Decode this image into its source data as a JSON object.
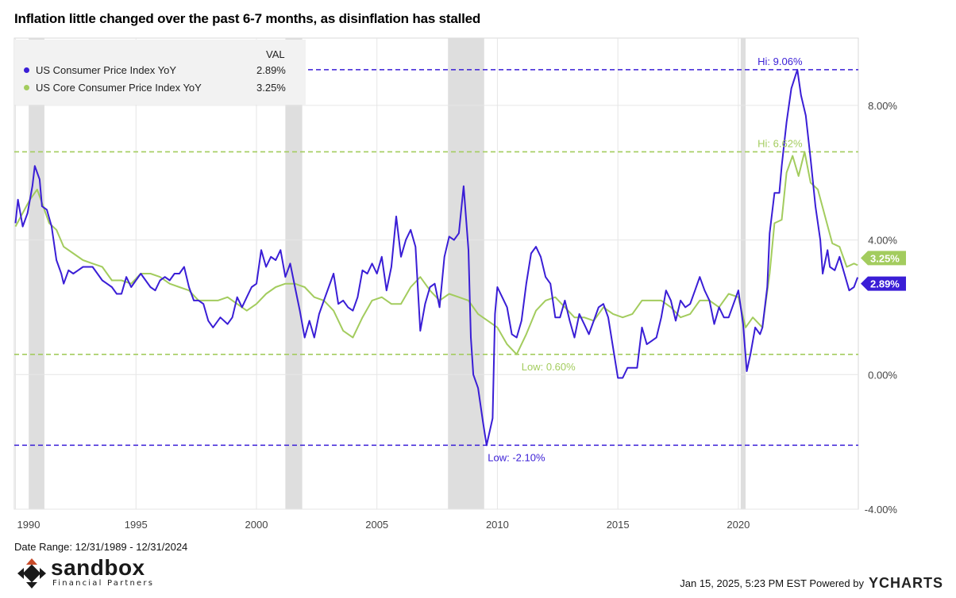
{
  "title": "Inflation little changed over the past 6-7 months, as disinflation has stalled",
  "legend": {
    "header": "VAL",
    "items": [
      {
        "name": "US Consumer Price Index YoY",
        "value": "2.89%",
        "color": "#3a1ed6"
      },
      {
        "name": "US Core Consumer Price Index YoY",
        "value": "3.25%",
        "color": "#a3cc5e"
      }
    ]
  },
  "footer": {
    "date_range": "Date Range: 12/31/1989 - 12/31/2024",
    "timestamp": "Jan 15, 2025, 5:23 PM EST Powered by",
    "brand": "YCHARTS",
    "logo_word": "sandbox",
    "logo_sub": "Financial Partners"
  },
  "chart_data": {
    "type": "line",
    "x_range": [
      "1989-12-31",
      "2024-12-31"
    ],
    "ylim": [
      -4,
      10
    ],
    "yticks": [
      "-4.00%",
      "0.00%",
      "4.00%",
      "8.00%"
    ],
    "ytick_values": [
      -4,
      0,
      4,
      8
    ],
    "xticks": [
      "1990",
      "1995",
      "2000",
      "2005",
      "2010",
      "2015",
      "2020"
    ],
    "xtick_values": [
      1990,
      1995,
      2000,
      2005,
      2010,
      2015,
      2020
    ],
    "recessions": [
      [
        1990.55,
        1991.2
      ],
      [
        2001.2,
        2001.9
      ],
      [
        2007.95,
        2009.45
      ],
      [
        2020.1,
        2020.3
      ]
    ],
    "reference_lines": [
      {
        "value": 9.06,
        "label": "Hi: 9.06%",
        "label_x": 2020.8,
        "series": 0
      },
      {
        "value": 6.62,
        "label": "Hi: 6.62%",
        "label_x": 2020.8,
        "series": 1
      },
      {
        "value": 0.6,
        "label": "Low: 0.60%",
        "label_x": 2011.0,
        "series": 1
      },
      {
        "value": -2.1,
        "label": "Low: -2.10%",
        "label_x": 2009.6,
        "series": 0
      }
    ],
    "end_labels": [
      "2.89%",
      "3.25%"
    ],
    "series": [
      {
        "name": "US Consumer Price Index YoY",
        "color": "#3a1ed6",
        "points": [
          [
            1990.0,
            4.5
          ],
          [
            1990.1,
            5.2
          ],
          [
            1990.3,
            4.4
          ],
          [
            1990.5,
            4.8
          ],
          [
            1990.7,
            5.6
          ],
          [
            1990.8,
            6.2
          ],
          [
            1991.0,
            5.8
          ],
          [
            1991.1,
            5.0
          ],
          [
            1991.3,
            4.9
          ],
          [
            1991.5,
            4.4
          ],
          [
            1991.7,
            3.4
          ],
          [
            1991.9,
            3.0
          ],
          [
            1992.0,
            2.7
          ],
          [
            1992.2,
            3.1
          ],
          [
            1992.4,
            3.0
          ],
          [
            1992.6,
            3.1
          ],
          [
            1992.8,
            3.2
          ],
          [
            1993.0,
            3.2
          ],
          [
            1993.2,
            3.2
          ],
          [
            1993.4,
            3.0
          ],
          [
            1993.6,
            2.8
          ],
          [
            1993.8,
            2.7
          ],
          [
            1994.0,
            2.6
          ],
          [
            1994.2,
            2.4
          ],
          [
            1994.4,
            2.4
          ],
          [
            1994.6,
            2.9
          ],
          [
            1994.8,
            2.6
          ],
          [
            1995.0,
            2.8
          ],
          [
            1995.2,
            3.0
          ],
          [
            1995.4,
            2.8
          ],
          [
            1995.6,
            2.6
          ],
          [
            1995.8,
            2.5
          ],
          [
            1996.0,
            2.8
          ],
          [
            1996.2,
            2.9
          ],
          [
            1996.4,
            2.8
          ],
          [
            1996.6,
            3.0
          ],
          [
            1996.8,
            3.0
          ],
          [
            1997.0,
            3.2
          ],
          [
            1997.2,
            2.6
          ],
          [
            1997.4,
            2.2
          ],
          [
            1997.6,
            2.2
          ],
          [
            1997.8,
            2.1
          ],
          [
            1998.0,
            1.6
          ],
          [
            1998.2,
            1.4
          ],
          [
            1998.5,
            1.7
          ],
          [
            1998.8,
            1.5
          ],
          [
            1999.0,
            1.7
          ],
          [
            1999.2,
            2.3
          ],
          [
            1999.4,
            2.0
          ],
          [
            1999.6,
            2.3
          ],
          [
            1999.8,
            2.6
          ],
          [
            2000.0,
            2.7
          ],
          [
            2000.2,
            3.7
          ],
          [
            2000.4,
            3.2
          ],
          [
            2000.6,
            3.5
          ],
          [
            2000.8,
            3.4
          ],
          [
            2001.0,
            3.7
          ],
          [
            2001.2,
            2.9
          ],
          [
            2001.4,
            3.3
          ],
          [
            2001.6,
            2.6
          ],
          [
            2001.8,
            1.9
          ],
          [
            2002.0,
            1.1
          ],
          [
            2002.2,
            1.6
          ],
          [
            2002.4,
            1.1
          ],
          [
            2002.6,
            1.8
          ],
          [
            2002.8,
            2.2
          ],
          [
            2003.0,
            2.6
          ],
          [
            2003.2,
            3.0
          ],
          [
            2003.4,
            2.1
          ],
          [
            2003.6,
            2.2
          ],
          [
            2003.8,
            2.0
          ],
          [
            2004.0,
            1.9
          ],
          [
            2004.2,
            2.3
          ],
          [
            2004.4,
            3.1
          ],
          [
            2004.6,
            3.0
          ],
          [
            2004.8,
            3.3
          ],
          [
            2005.0,
            3.0
          ],
          [
            2005.2,
            3.5
          ],
          [
            2005.4,
            2.5
          ],
          [
            2005.6,
            3.2
          ],
          [
            2005.8,
            4.7
          ],
          [
            2006.0,
            3.5
          ],
          [
            2006.2,
            4.0
          ],
          [
            2006.4,
            4.3
          ],
          [
            2006.6,
            3.8
          ],
          [
            2006.8,
            1.3
          ],
          [
            2007.0,
            2.1
          ],
          [
            2007.2,
            2.6
          ],
          [
            2007.4,
            2.7
          ],
          [
            2007.6,
            2.0
          ],
          [
            2007.8,
            3.5
          ],
          [
            2008.0,
            4.1
          ],
          [
            2008.2,
            4.0
          ],
          [
            2008.4,
            4.2
          ],
          [
            2008.6,
            5.6
          ],
          [
            2008.8,
            3.7
          ],
          [
            2008.9,
            1.1
          ],
          [
            2009.0,
            0.0
          ],
          [
            2009.2,
            -0.4
          ],
          [
            2009.4,
            -1.4
          ],
          [
            2009.55,
            -2.1
          ],
          [
            2009.8,
            -1.3
          ],
          [
            2009.9,
            1.8
          ],
          [
            2010.0,
            2.6
          ],
          [
            2010.2,
            2.3
          ],
          [
            2010.4,
            2.0
          ],
          [
            2010.6,
            1.2
          ],
          [
            2010.8,
            1.1
          ],
          [
            2011.0,
            1.6
          ],
          [
            2011.2,
            2.7
          ],
          [
            2011.4,
            3.6
          ],
          [
            2011.6,
            3.8
          ],
          [
            2011.8,
            3.5
          ],
          [
            2012.0,
            2.9
          ],
          [
            2012.2,
            2.7
          ],
          [
            2012.4,
            1.7
          ],
          [
            2012.6,
            1.7
          ],
          [
            2012.8,
            2.2
          ],
          [
            2013.0,
            1.6
          ],
          [
            2013.2,
            1.1
          ],
          [
            2013.4,
            1.8
          ],
          [
            2013.6,
            1.5
          ],
          [
            2013.8,
            1.2
          ],
          [
            2014.0,
            1.6
          ],
          [
            2014.2,
            2.0
          ],
          [
            2014.4,
            2.1
          ],
          [
            2014.6,
            1.7
          ],
          [
            2014.8,
            0.8
          ],
          [
            2015.0,
            -0.1
          ],
          [
            2015.2,
            -0.1
          ],
          [
            2015.4,
            0.2
          ],
          [
            2015.6,
            0.2
          ],
          [
            2015.8,
            0.2
          ],
          [
            2016.0,
            1.4
          ],
          [
            2016.2,
            0.9
          ],
          [
            2016.4,
            1.0
          ],
          [
            2016.6,
            1.1
          ],
          [
            2016.8,
            1.7
          ],
          [
            2017.0,
            2.5
          ],
          [
            2017.2,
            2.2
          ],
          [
            2017.4,
            1.6
          ],
          [
            2017.6,
            2.2
          ],
          [
            2017.8,
            2.0
          ],
          [
            2018.0,
            2.1
          ],
          [
            2018.2,
            2.5
          ],
          [
            2018.4,
            2.9
          ],
          [
            2018.6,
            2.5
          ],
          [
            2018.8,
            2.2
          ],
          [
            2019.0,
            1.5
          ],
          [
            2019.2,
            2.0
          ],
          [
            2019.4,
            1.7
          ],
          [
            2019.6,
            1.7
          ],
          [
            2019.8,
            2.1
          ],
          [
            2020.0,
            2.5
          ],
          [
            2020.2,
            1.5
          ],
          [
            2020.35,
            0.1
          ],
          [
            2020.5,
            0.6
          ],
          [
            2020.7,
            1.4
          ],
          [
            2020.9,
            1.2
          ],
          [
            2021.0,
            1.4
          ],
          [
            2021.2,
            2.6
          ],
          [
            2021.3,
            4.2
          ],
          [
            2021.5,
            5.4
          ],
          [
            2021.7,
            5.4
          ],
          [
            2021.8,
            6.2
          ],
          [
            2022.0,
            7.5
          ],
          [
            2022.2,
            8.5
          ],
          [
            2022.45,
            9.06
          ],
          [
            2022.6,
            8.3
          ],
          [
            2022.8,
            7.7
          ],
          [
            2023.0,
            6.4
          ],
          [
            2023.2,
            5.0
          ],
          [
            2023.4,
            4.0
          ],
          [
            2023.5,
            3.0
          ],
          [
            2023.7,
            3.7
          ],
          [
            2023.8,
            3.2
          ],
          [
            2024.0,
            3.1
          ],
          [
            2024.2,
            3.5
          ],
          [
            2024.4,
            3.0
          ],
          [
            2024.6,
            2.5
          ],
          [
            2024.8,
            2.6
          ],
          [
            2024.95,
            2.89
          ]
        ]
      },
      {
        "name": "US Core Consumer Price Index YoY",
        "color": "#a3cc5e",
        "points": [
          [
            1990.0,
            4.4
          ],
          [
            1990.3,
            4.8
          ],
          [
            1990.6,
            5.2
          ],
          [
            1990.9,
            5.5
          ],
          [
            1991.1,
            5.1
          ],
          [
            1991.4,
            4.5
          ],
          [
            1991.7,
            4.3
          ],
          [
            1992.0,
            3.8
          ],
          [
            1992.4,
            3.6
          ],
          [
            1992.8,
            3.4
          ],
          [
            1993.2,
            3.3
          ],
          [
            1993.6,
            3.2
          ],
          [
            1994.0,
            2.8
          ],
          [
            1994.4,
            2.8
          ],
          [
            1994.8,
            2.7
          ],
          [
            1995.2,
            3.0
          ],
          [
            1995.6,
            3.0
          ],
          [
            1996.0,
            2.9
          ],
          [
            1996.4,
            2.7
          ],
          [
            1996.8,
            2.6
          ],
          [
            1997.2,
            2.5
          ],
          [
            1997.6,
            2.2
          ],
          [
            1998.0,
            2.2
          ],
          [
            1998.4,
            2.2
          ],
          [
            1998.8,
            2.3
          ],
          [
            1999.2,
            2.1
          ],
          [
            1999.6,
            1.9
          ],
          [
            2000.0,
            2.1
          ],
          [
            2000.4,
            2.4
          ],
          [
            2000.8,
            2.6
          ],
          [
            2001.2,
            2.7
          ],
          [
            2001.6,
            2.7
          ],
          [
            2002.0,
            2.6
          ],
          [
            2002.4,
            2.3
          ],
          [
            2002.8,
            2.2
          ],
          [
            2003.2,
            1.9
          ],
          [
            2003.6,
            1.3
          ],
          [
            2004.0,
            1.1
          ],
          [
            2004.4,
            1.7
          ],
          [
            2004.8,
            2.2
          ],
          [
            2005.2,
            2.3
          ],
          [
            2005.6,
            2.1
          ],
          [
            2006.0,
            2.1
          ],
          [
            2006.4,
            2.6
          ],
          [
            2006.8,
            2.9
          ],
          [
            2007.2,
            2.5
          ],
          [
            2007.6,
            2.2
          ],
          [
            2008.0,
            2.4
          ],
          [
            2008.4,
            2.3
          ],
          [
            2008.8,
            2.2
          ],
          [
            2009.2,
            1.8
          ],
          [
            2009.6,
            1.6
          ],
          [
            2010.0,
            1.4
          ],
          [
            2010.4,
            0.9
          ],
          [
            2010.8,
            0.6
          ],
          [
            2011.2,
            1.2
          ],
          [
            2011.6,
            1.9
          ],
          [
            2012.0,
            2.2
          ],
          [
            2012.4,
            2.3
          ],
          [
            2012.8,
            2.0
          ],
          [
            2013.2,
            1.7
          ],
          [
            2013.6,
            1.7
          ],
          [
            2014.0,
            1.6
          ],
          [
            2014.4,
            2.0
          ],
          [
            2014.8,
            1.8
          ],
          [
            2015.2,
            1.7
          ],
          [
            2015.6,
            1.8
          ],
          [
            2016.0,
            2.2
          ],
          [
            2016.4,
            2.2
          ],
          [
            2016.8,
            2.2
          ],
          [
            2017.2,
            2.0
          ],
          [
            2017.6,
            1.7
          ],
          [
            2018.0,
            1.8
          ],
          [
            2018.4,
            2.2
          ],
          [
            2018.8,
            2.2
          ],
          [
            2019.2,
            2.0
          ],
          [
            2019.6,
            2.4
          ],
          [
            2020.0,
            2.3
          ],
          [
            2020.3,
            1.4
          ],
          [
            2020.6,
            1.7
          ],
          [
            2021.0,
            1.4
          ],
          [
            2021.3,
            3.0
          ],
          [
            2021.5,
            4.5
          ],
          [
            2021.8,
            4.6
          ],
          [
            2022.0,
            6.0
          ],
          [
            2022.25,
            6.5
          ],
          [
            2022.5,
            5.9
          ],
          [
            2022.75,
            6.62
          ],
          [
            2023.0,
            5.7
          ],
          [
            2023.3,
            5.5
          ],
          [
            2023.6,
            4.7
          ],
          [
            2023.9,
            3.9
          ],
          [
            2024.2,
            3.8
          ],
          [
            2024.5,
            3.2
          ],
          [
            2024.8,
            3.3
          ],
          [
            2024.95,
            3.25
          ]
        ]
      }
    ]
  }
}
